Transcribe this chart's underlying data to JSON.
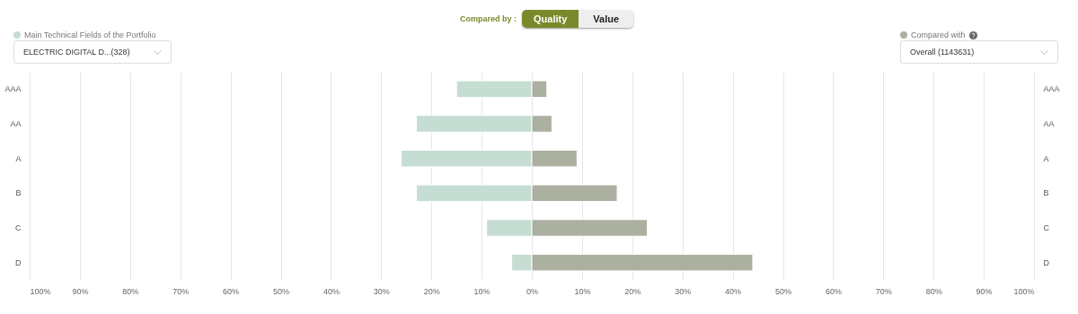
{
  "chart_data": {
    "type": "bar",
    "orientation": "horizontal",
    "categories": [
      "AAA",
      "AA",
      "A",
      "B",
      "C",
      "D"
    ],
    "series": [
      {
        "name": "Main Technical Fields of the Portfolio",
        "color": "#c5ddd2",
        "values": [
          -15,
          -23,
          -26,
          -23,
          -9,
          -4
        ]
      },
      {
        "name": "Compared with",
        "color": "#acb0a0",
        "values": [
          3,
          4,
          9,
          17,
          23,
          44
        ]
      }
    ],
    "xlim": [
      -100,
      100
    ],
    "xticks": [
      {
        "value": -100,
        "label": "100%"
      },
      {
        "value": -90,
        "label": "90%"
      },
      {
        "value": -80,
        "label": "80%"
      },
      {
        "value": -70,
        "label": "70%"
      },
      {
        "value": -60,
        "label": "60%"
      },
      {
        "value": -50,
        "label": "50%"
      },
      {
        "value": -40,
        "label": "40%"
      },
      {
        "value": -30,
        "label": "30%"
      },
      {
        "value": -20,
        "label": "20%"
      },
      {
        "value": -10,
        "label": "10%"
      },
      {
        "value": 0,
        "label": "0%"
      },
      {
        "value": 10,
        "label": "10%"
      },
      {
        "value": 20,
        "label": "20%"
      },
      {
        "value": 30,
        "label": "30%"
      },
      {
        "value": 40,
        "label": "40%"
      },
      {
        "value": 50,
        "label": "50%"
      },
      {
        "value": 60,
        "label": "60%"
      },
      {
        "value": 70,
        "label": "70%"
      },
      {
        "value": 80,
        "label": "80%"
      },
      {
        "value": 90,
        "label": "90%"
      },
      {
        "value": 100,
        "label": "100%"
      }
    ],
    "stacked": true,
    "grid": "x",
    "legend": "top",
    "annotations": [
      "Compared by :",
      "Quality",
      "Value",
      "ELECTRIC DIGITAL D...(328)",
      "Overall (1143631)"
    ]
  }
}
